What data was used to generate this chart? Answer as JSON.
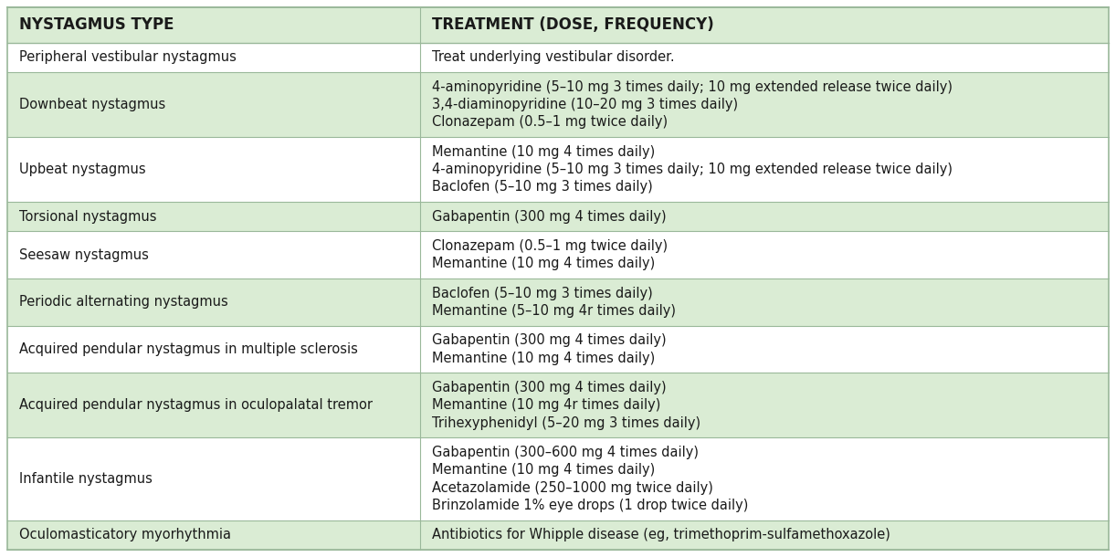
{
  "header": [
    "NYSTAGMUS TYPE",
    "TREATMENT (DOSE, FREQUENCY)"
  ],
  "rows": [
    {
      "type": "Peripheral vestibular nystagmus",
      "treatment": "Treat underlying vestibular disorder.",
      "shaded": false,
      "n_lines": 1
    },
    {
      "type": "Downbeat nystagmus",
      "treatment": "4-aminopyridine (5–10 mg 3 times daily; 10 mg extended release twice daily)\n3,4-diaminopyridine (10–20 mg 3 times daily)\nClonazepam (0.5–1 mg twice daily)",
      "shaded": true,
      "n_lines": 3
    },
    {
      "type": "Upbeat nystagmus",
      "treatment": "Memantine (10 mg 4 times daily)\n4-aminopyridine (5–10 mg 3 times daily; 10 mg extended release twice daily)\nBaclofen (5–10 mg 3 times daily)",
      "shaded": false,
      "n_lines": 3
    },
    {
      "type": "Torsional nystagmus",
      "treatment": "Gabapentin (300 mg 4 times daily)",
      "shaded": true,
      "n_lines": 1
    },
    {
      "type": "Seesaw nystagmus",
      "treatment": "Clonazepam (0.5–1 mg twice daily)\nMemantine (10 mg 4 times daily)",
      "shaded": false,
      "n_lines": 2
    },
    {
      "type": "Periodic alternating nystagmus",
      "treatment": "Baclofen (5–10 mg 3 times daily)\nMemantine (5–10 mg 4r times daily)",
      "shaded": true,
      "n_lines": 2
    },
    {
      "type": "Acquired pendular nystagmus in multiple sclerosis",
      "treatment": "Gabapentin (300 mg 4 times daily)\nMemantine (10 mg 4 times daily)",
      "shaded": false,
      "n_lines": 2
    },
    {
      "type": "Acquired pendular nystagmus in oculopalatal tremor",
      "treatment": "Gabapentin (300 mg 4 times daily)\nMemantine (10 mg 4r times daily)\nTrihexyphenidyl (5–20 mg 3 times daily)",
      "shaded": true,
      "n_lines": 3
    },
    {
      "type": "Infantile nystagmus",
      "treatment": "Gabapentin (300–600 mg 4 times daily)\nMemantine (10 mg 4 times daily)\nAcetazolamide (250–1000 mg twice daily)\nBrinzolamide 1% eye drops (1 drop twice daily)",
      "shaded": false,
      "n_lines": 4
    },
    {
      "type": "Oculomasticatory myorhythmia",
      "treatment": "Antibiotics for Whipple disease (eg, trimethoprim-sulfamethoxazole)",
      "shaded": true,
      "n_lines": 1
    }
  ],
  "header_bg": "#daecd4",
  "shaded_bg": "#daecd4",
  "white_bg": "#ffffff",
  "header_text_color": "#1a1a1a",
  "body_text_color": "#1a1a1a",
  "border_color": "#9ab89a",
  "col_split": 0.375,
  "font_size": 10.5,
  "header_font_size": 12,
  "fig_width": 12.22,
  "fig_height": 6.1,
  "dpi": 100
}
